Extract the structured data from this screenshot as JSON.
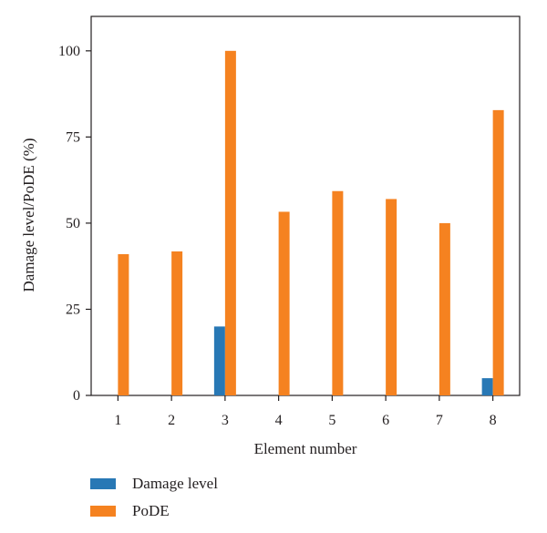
{
  "chart_data": {
    "type": "bar",
    "categories": [
      "1",
      "2",
      "3",
      "4",
      "5",
      "6",
      "7",
      "8"
    ],
    "series": [
      {
        "name": "Damage level",
        "color": "#2878b5",
        "values": [
          0,
          0,
          20,
          0,
          0,
          0,
          0,
          5
        ]
      },
      {
        "name": "PoDE",
        "color": "#f58220",
        "values": [
          41,
          41.8,
          100,
          53.3,
          59.3,
          57,
          50,
          82.8
        ]
      }
    ],
    "yticks": [
      "0",
      "25",
      "50",
      "75",
      "100"
    ],
    "xlabel": "Element number",
    "ylabel": "Damage level/PoDE (%)",
    "ylim": [
      0,
      110
    ],
    "grid": false,
    "legend": "bottom-left"
  }
}
